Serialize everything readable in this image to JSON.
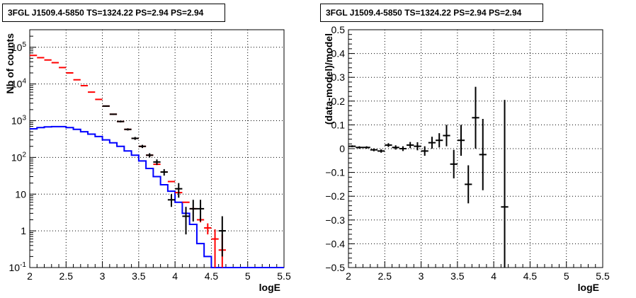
{
  "titles": {
    "left": "3FGL J1509.4-5850 TS=1324.22 PS=2.94 PS=2.94",
    "right": "3FGL J1509.4-5850 TS=1324.22 PS=2.94 PS=2.94"
  },
  "colors": {
    "model_total": "#ff0000",
    "model_bkg": "#0000ff",
    "data": "#000000"
  },
  "chart_data": [
    {
      "type": "line",
      "panel": "left",
      "xlabel": "logE",
      "ylabel": "Nb of counts",
      "xlim": [
        2,
        5.5
      ],
      "ylim": [
        0.1,
        300000
      ],
      "yscale": "log",
      "grid": true,
      "x_ticks": [
        "2",
        "2.5",
        "3",
        "3.5",
        "4",
        "4.5",
        "5",
        "5.5"
      ],
      "y_ticks": [
        {
          "base": "10",
          "exp": "-1",
          "value": 0.1
        },
        {
          "base": "1",
          "exp": "",
          "value": 1
        },
        {
          "base": "10",
          "exp": "",
          "value": 10
        },
        {
          "base": "10",
          "exp": "2",
          "value": 100
        },
        {
          "base": "10",
          "exp": "3",
          "value": 1000
        },
        {
          "base": "10",
          "exp": "4",
          "value": 10000
        },
        {
          "base": "10",
          "exp": "5",
          "value": 100000
        }
      ],
      "bin_width": 0.1,
      "series": [
        {
          "name": "",
          "role": "total_model",
          "style": "red bars",
          "x": [
            2.05,
            2.15,
            2.25,
            2.35,
            2.45,
            2.55,
            2.65,
            2.75,
            2.85,
            2.95,
            3.05,
            3.15,
            3.25,
            3.35,
            3.45,
            3.55,
            3.65,
            3.75,
            3.85,
            3.95,
            4.05,
            4.15,
            4.25,
            4.35,
            4.45,
            4.55,
            4.65
          ],
          "y": [
            60000,
            52000,
            45000,
            38000,
            28000,
            20000,
            13000,
            9000,
            6000,
            3800,
            2500,
            1500,
            950,
            580,
            330,
            200,
            115,
            65,
            40,
            22,
            11,
            6,
            4,
            2,
            1.2,
            0.6,
            0.3
          ],
          "yerr": [
            0,
            0,
            0,
            0,
            0,
            0,
            0,
            0,
            0,
            0,
            0,
            0,
            0,
            0,
            0,
            0,
            0,
            0,
            0,
            0,
            0.2,
            0.2,
            0.25,
            0.3,
            0.4,
            0.5,
            0.5
          ]
        },
        {
          "name": "",
          "role": "background_model",
          "style": "blue step",
          "x": [
            2.05,
            2.15,
            2.25,
            2.35,
            2.45,
            2.55,
            2.65,
            2.75,
            2.85,
            2.95,
            3.05,
            3.15,
            3.25,
            3.35,
            3.45,
            3.55,
            3.65,
            3.75,
            3.85,
            3.95,
            4.05,
            4.15,
            4.25,
            4.35,
            4.45,
            4.55,
            4.65,
            4.75,
            4.85,
            4.95,
            5.05,
            5.15,
            5.25,
            5.35,
            5.45
          ],
          "y": [
            600,
            650,
            680,
            690,
            690,
            650,
            580,
            500,
            430,
            370,
            300,
            250,
            200,
            150,
            115,
            80,
            50,
            30,
            18,
            12,
            6,
            3,
            1.5,
            0.45,
            0.2,
            0.1,
            0.1,
            0.1,
            0.1,
            0.1,
            0.1,
            0.1,
            0.1,
            0.1,
            0.1
          ]
        },
        {
          "name": "",
          "role": "data",
          "style": "black crosses",
          "x": [
            3.05,
            3.15,
            3.25,
            3.35,
            3.45,
            3.55,
            3.65,
            3.75,
            3.85,
            3.95,
            4.05,
            4.15,
            4.25,
            4.35,
            4.65
          ],
          "y": [
            2500,
            1500,
            950,
            580,
            330,
            200,
            115,
            75,
            40,
            7,
            14,
            2.5,
            4,
            4,
            1
          ],
          "ylo": [
            2400,
            1440,
            900,
            540,
            300,
            180,
            100,
            62,
            32,
            4.5,
            8,
            0.8,
            1.8,
            1.8,
            0.2
          ],
          "yhi": [
            2600,
            1560,
            1000,
            620,
            360,
            220,
            130,
            88,
            48,
            10,
            20,
            4.5,
            7,
            7,
            2.5
          ]
        }
      ]
    },
    {
      "type": "scatter",
      "panel": "right",
      "xlabel": "logE",
      "ylabel": "(data-model)/model",
      "xlim": [
        2,
        5.5
      ],
      "ylim": [
        -0.5,
        0.5
      ],
      "grid": true,
      "x_ticks": [
        "2",
        "2.5",
        "3",
        "3.5",
        "4",
        "4.5",
        "5",
        "5.5"
      ],
      "y_ticks": [
        "0.5",
        "0.4",
        "0.3",
        "0.2",
        "0.1",
        "0",
        "−0.1",
        "−0.2",
        "−0.3",
        "−0.4",
        "−0.5"
      ],
      "bin_width": 0.1,
      "series": [
        {
          "name": "",
          "style": "black crosses",
          "x": [
            2.05,
            2.15,
            2.25,
            2.35,
            2.45,
            2.55,
            2.65,
            2.75,
            2.85,
            2.95,
            3.05,
            3.15,
            3.25,
            3.35,
            3.45,
            3.55,
            3.65,
            3.75,
            3.85,
            4.15
          ],
          "y": [
            0.01,
            0.005,
            0.005,
            -0.005,
            -0.01,
            0.015,
            0.005,
            0.0,
            0.015,
            0.01,
            -0.01,
            0.025,
            0.035,
            0.055,
            -0.065,
            0.035,
            -0.15,
            0.13,
            -0.025,
            -0.245
          ],
          "yerr": [
            0.004,
            0.005,
            0.005,
            0.006,
            0.007,
            0.008,
            0.009,
            0.01,
            0.013,
            0.017,
            0.02,
            0.025,
            0.03,
            0.045,
            0.06,
            0.065,
            0.08,
            0.13,
            0.15,
            0.45
          ]
        }
      ]
    }
  ]
}
